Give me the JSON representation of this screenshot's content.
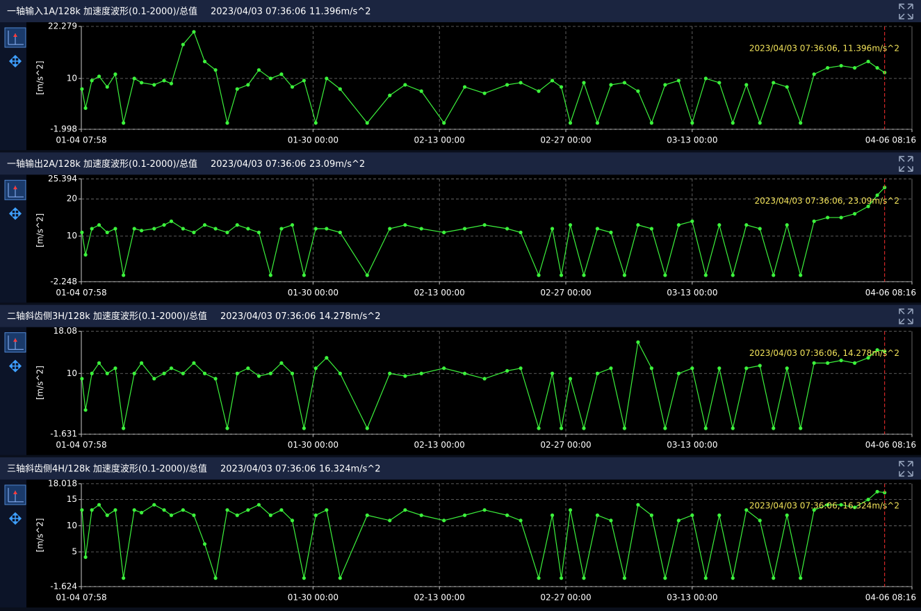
{
  "chart_data": [
    {
      "type": "line",
      "title": "一轴输入1A/128k 加速度波形(0.1-2000)/总值",
      "timestamp": "2023/04/03 07:36:06",
      "total_value": "11.396m/s^2",
      "y_label": "[m/s^2]",
      "color": "#3cf23c",
      "grid": true,
      "xlim": [
        4.332,
        96.344
      ],
      "xticks": [
        {
          "value": 4.332,
          "label": "01-04 07:58"
        },
        {
          "value": 30,
          "label": "01-30 00:00"
        },
        {
          "value": 44,
          "label": "02-13 00:00"
        },
        {
          "value": 58,
          "label": "02-27 00:00"
        },
        {
          "value": 72,
          "label": "03-13 00:00"
        },
        {
          "value": 96.344,
          "label": "04-06 08:16"
        }
      ],
      "ylim": [
        -1.998,
        22.279
      ],
      "yticks": [
        -1.998,
        10,
        22.279
      ],
      "cursor": {
        "x": 93.317,
        "label": "2023/04/03 07:36:06, 11.396m/s^2",
        "color": "#ff3030"
      },
      "x": [
        4.4,
        4.8,
        5.5,
        6.3,
        7.2,
        8.1,
        9.0,
        10.2,
        11.0,
        12.4,
        13.5,
        14.3,
        15.6,
        16.8,
        18.0,
        19.2,
        20.5,
        21.6,
        22.8,
        24.0,
        25.3,
        26.5,
        27.7,
        29.0,
        30.3,
        31.5,
        33.0,
        36.0,
        38.5,
        40.2,
        42.0,
        44.5,
        46.8,
        49.0,
        51.5,
        53.0,
        55.0,
        56.5,
        57.5,
        58.5,
        60.0,
        61.5,
        63.0,
        64.5,
        66.0,
        67.5,
        69.0,
        70.5,
        72.0,
        73.5,
        75.0,
        76.5,
        78.0,
        79.5,
        81.0,
        82.5,
        84.0,
        85.5,
        87.0,
        88.5,
        90.0,
        91.5,
        92.5,
        93.317
      ],
      "values": [
        7.5,
        3,
        9.5,
        10.5,
        8,
        11,
        -0.5,
        10,
        9,
        8.5,
        9.5,
        8.8,
        18,
        21,
        14,
        12,
        -0.5,
        7.5,
        8.5,
        12,
        10,
        11,
        8,
        9.5,
        -0.5,
        10,
        7.5,
        -0.5,
        6,
        8.5,
        7,
        -0.5,
        8,
        6.5,
        8.5,
        9,
        7,
        9.5,
        8,
        -0.5,
        9,
        -0.5,
        8.5,
        9,
        7,
        -0.5,
        8.5,
        9.5,
        -0.5,
        10,
        9,
        -0.5,
        8.5,
        -0.5,
        9,
        8,
        -0.5,
        11,
        12.5,
        13,
        12.5,
        14,
        12.5,
        11.396
      ]
    },
    {
      "type": "line",
      "title": "一轴输出2A/128k 加速度波形(0.1-2000)/总值",
      "timestamp": "2023/04/03 07:36:06",
      "total_value": "23.09m/s^2",
      "y_label": "[m/s^2]",
      "color": "#3cf23c",
      "grid": true,
      "xlim": [
        4.332,
        96.344
      ],
      "xticks": [
        {
          "value": 4.332,
          "label": "01-04 07:58"
        },
        {
          "value": 30,
          "label": "01-30 00:00"
        },
        {
          "value": 44,
          "label": "02-13 00:00"
        },
        {
          "value": 58,
          "label": "02-27 00:00"
        },
        {
          "value": 72,
          "label": "03-13 00:00"
        },
        {
          "value": 96.344,
          "label": "04-06 08:16"
        }
      ],
      "ylim": [
        -2.248,
        25.394
      ],
      "yticks": [
        -2.248,
        10,
        20,
        25.394
      ],
      "cursor": {
        "x": 93.317,
        "label": "2023/04/03 07:36:06, 23.09m/s^2",
        "color": "#ff3030"
      },
      "x": [
        4.4,
        4.8,
        5.5,
        6.3,
        7.2,
        8.1,
        9.0,
        10.2,
        11.0,
        12.4,
        13.5,
        14.3,
        15.6,
        16.8,
        18.0,
        19.2,
        20.5,
        21.6,
        22.8,
        24.0,
        25.3,
        26.5,
        27.7,
        29.0,
        30.3,
        31.5,
        33.0,
        36.0,
        38.5,
        40.2,
        42.0,
        44.5,
        46.8,
        49.0,
        51.5,
        53.0,
        55.0,
        56.5,
        57.5,
        58.5,
        60.0,
        61.5,
        63.0,
        64.5,
        66.0,
        67.5,
        69.0,
        70.5,
        72.0,
        73.5,
        75.0,
        76.5,
        78.0,
        79.5,
        81.0,
        82.5,
        84.0,
        85.5,
        87.0,
        88.5,
        90.0,
        91.5,
        92.5,
        93.317
      ],
      "values": [
        11,
        5,
        12,
        13,
        11,
        12,
        -0.5,
        12,
        11.5,
        12,
        13,
        14,
        12,
        11,
        13,
        12,
        11,
        13,
        12,
        11,
        -0.5,
        12,
        13,
        -0.5,
        12,
        12,
        11,
        -0.5,
        12,
        13,
        12,
        11,
        12,
        13,
        12,
        11,
        -0.5,
        12,
        -0.5,
        13,
        -0.5,
        12,
        11,
        -0.5,
        13,
        12,
        -0.5,
        13,
        14,
        -0.5,
        13,
        -0.5,
        13,
        12,
        -0.5,
        13,
        -0.5,
        14,
        15,
        15,
        16,
        18,
        21,
        23.09
      ]
    },
    {
      "type": "line",
      "title": "二轴斜齿侧3H/128k 加速度波形(0.1-2000)/总值",
      "timestamp": "2023/04/03 07:36:06",
      "total_value": "14.278m/s^2",
      "y_label": "[m/s^2]",
      "color": "#3cf23c",
      "grid": true,
      "xlim": [
        4.332,
        96.344
      ],
      "xticks": [
        {
          "value": 4.332,
          "label": "01-04 07:58"
        },
        {
          "value": 30,
          "label": "01-30 00:00"
        },
        {
          "value": 44,
          "label": "02-13 00:00"
        },
        {
          "value": 58,
          "label": "02-27 00:00"
        },
        {
          "value": 72,
          "label": "03-13 00:00"
        },
        {
          "value": 96.344,
          "label": "04-06 08:16"
        }
      ],
      "ylim": [
        -1.631,
        18.08
      ],
      "yticks": [
        -1.631,
        10,
        18.08
      ],
      "cursor": {
        "x": 93.317,
        "label": "2023/04/03 07:36:06, 14.278m/s^2",
        "color": "#ff3030"
      },
      "x": [
        4.4,
        4.8,
        5.5,
        6.3,
        7.2,
        8.1,
        9.0,
        10.2,
        11.0,
        12.4,
        13.5,
        14.3,
        15.6,
        16.8,
        18.0,
        19.2,
        20.5,
        21.6,
        22.8,
        24.0,
        25.3,
        26.5,
        27.7,
        29.0,
        30.3,
        31.5,
        33.0,
        36.0,
        38.5,
        40.2,
        42.0,
        44.5,
        46.8,
        49.0,
        51.5,
        53.0,
        55.0,
        56.5,
        57.5,
        58.5,
        60.0,
        61.5,
        63.0,
        64.5,
        66.0,
        67.5,
        69.0,
        70.5,
        72.0,
        73.5,
        75.0,
        76.5,
        78.0,
        79.5,
        81.0,
        82.5,
        84.0,
        85.5,
        87.0,
        88.5,
        90.0,
        91.5,
        92.5,
        93.317
      ],
      "values": [
        9,
        3,
        10,
        12,
        10,
        11,
        -0.5,
        10,
        12,
        9,
        10,
        11,
        10,
        12,
        10,
        9,
        -0.5,
        10,
        11,
        9.5,
        10,
        12,
        10,
        -0.5,
        11,
        13,
        10,
        -0.5,
        10,
        9.5,
        10,
        11,
        10,
        9,
        10.5,
        11,
        -0.5,
        10,
        -0.5,
        9,
        -0.5,
        10,
        11,
        -0.5,
        16,
        11,
        -0.5,
        10,
        11,
        -0.5,
        11,
        -0.5,
        11,
        11.5,
        -0.5,
        11,
        -0.5,
        12,
        12,
        12.5,
        12,
        13,
        14.5,
        14.278
      ]
    },
    {
      "type": "line",
      "title": "三轴斜齿侧4H/128k 加速度波形(0.1-2000)/总值",
      "timestamp": "2023/04/03 07:36:06",
      "total_value": "16.324m/s^2",
      "y_label": "[m/s^2]",
      "color": "#3cf23c",
      "grid": true,
      "xlim": [
        4.332,
        96.344
      ],
      "xticks": [
        {
          "value": 4.332,
          "label": "01-04 07:58"
        },
        {
          "value": 30,
          "label": "01-30 00:00"
        },
        {
          "value": 44,
          "label": "02-13 00:00"
        },
        {
          "value": 58,
          "label": "02-27 00:00"
        },
        {
          "value": 72,
          "label": "03-13 00:00"
        },
        {
          "value": 96.344,
          "label": "04-06 08:16"
        }
      ],
      "ylim": [
        -1.624,
        18.018
      ],
      "yticks": [
        -1.624,
        5,
        10,
        15,
        18.018
      ],
      "cursor": {
        "x": 93.317,
        "label": "2023/04/03 07:36:06, 16.324m/s^2",
        "color": "#ff3030"
      },
      "x": [
        4.4,
        4.8,
        5.5,
        6.3,
        7.2,
        8.1,
        9.0,
        10.2,
        11.0,
        12.4,
        13.5,
        14.3,
        15.6,
        16.8,
        18.0,
        19.2,
        20.5,
        21.6,
        22.8,
        24.0,
        25.3,
        26.5,
        27.7,
        29.0,
        30.3,
        31.5,
        33.0,
        36.0,
        38.5,
        40.2,
        42.0,
        44.5,
        46.8,
        49.0,
        51.5,
        53.0,
        55.0,
        56.5,
        57.5,
        58.5,
        60.0,
        61.5,
        63.0,
        64.5,
        66.0,
        67.5,
        69.0,
        70.5,
        72.0,
        73.5,
        75.0,
        76.5,
        78.0,
        79.5,
        81.0,
        82.5,
        84.0,
        85.5,
        87.0,
        88.5,
        90.0,
        91.5,
        92.5,
        93.317
      ],
      "values": [
        13,
        4,
        13,
        14,
        12,
        13,
        0,
        13,
        12.5,
        14,
        13,
        12,
        13,
        12,
        6.5,
        0,
        13,
        12,
        13,
        14,
        12,
        13,
        11,
        0,
        12,
        13,
        0,
        12,
        11,
        13,
        12,
        11,
        12,
        13,
        12,
        11,
        0,
        12,
        0,
        13,
        0,
        12,
        11,
        0,
        14,
        12,
        0,
        11,
        12,
        0,
        12,
        0,
        13,
        11,
        0,
        12,
        0,
        13,
        14,
        14,
        13.5,
        15,
        16.5,
        16.324
      ]
    }
  ]
}
